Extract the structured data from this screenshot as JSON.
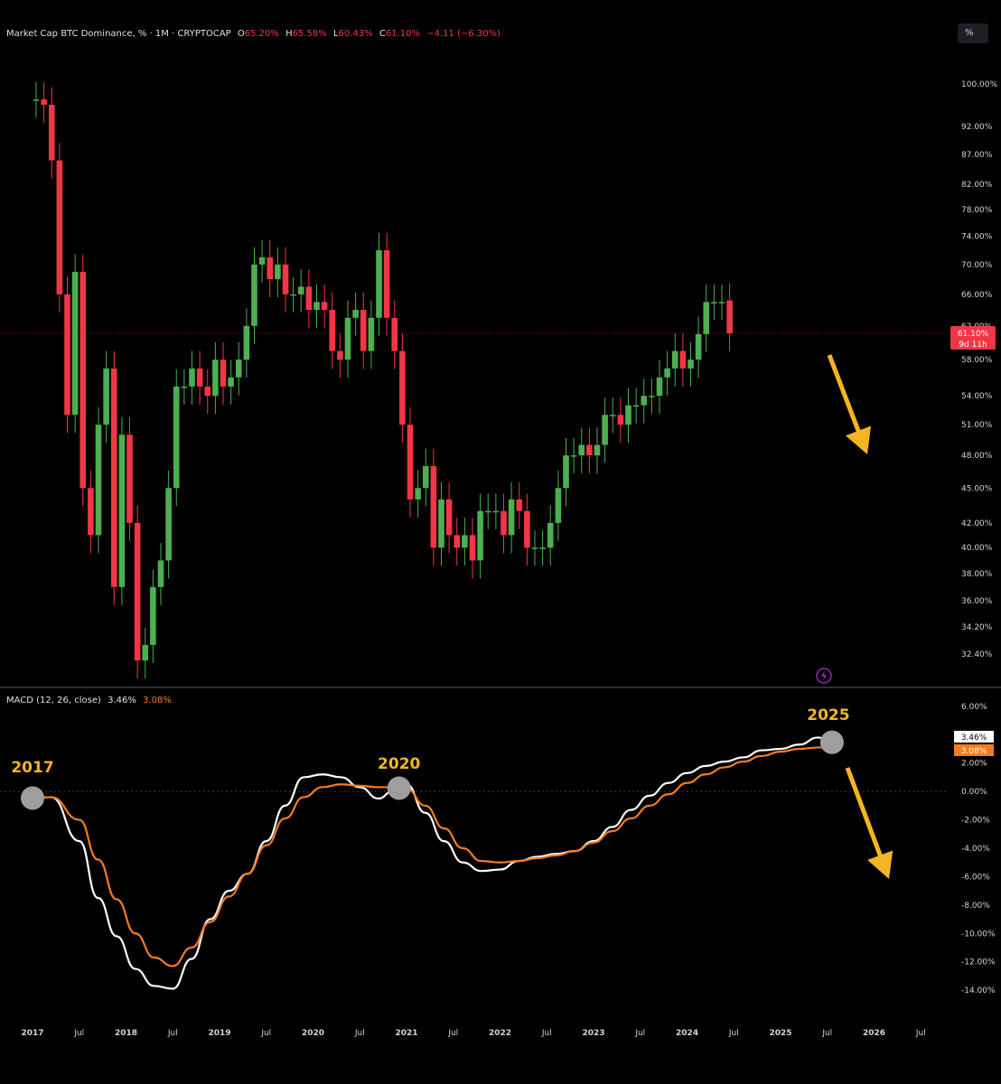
{
  "header": {
    "title": "Market Cap BTC Dominance, % · 1M · CRYPTOCAP",
    "ohlc": [
      {
        "label": "O",
        "value": "65.20%"
      },
      {
        "label": "H",
        "value": "65.58%"
      },
      {
        "label": "L",
        "value": "60.43%"
      },
      {
        "label": "C",
        "value": "61.10%"
      }
    ],
    "change": "−4.11 (−6.30%)",
    "scale_button": "%"
  },
  "colors": {
    "background": "#000000",
    "up": "#4caf50",
    "down": "#f23645",
    "macd_line": "#ffffff",
    "signal_line": "#f57c1f",
    "annotation": "#f4b522",
    "marker": "#9e9e9e",
    "axis_text": "#d1d4dc"
  },
  "price_label": {
    "value": "61.10%",
    "countdown": "9d 11h"
  },
  "macd_header": {
    "label": "MACD (12, 26, close)",
    "macd": "3.46%",
    "signal": "3.08%"
  },
  "macd_tags": {
    "macd": "3.46%",
    "signal": "3.08%"
  },
  "annotations": [
    {
      "text": "2017",
      "marker_date": 2017.0
    },
    {
      "text": "2020",
      "marker_date": 2020.92
    },
    {
      "text": "2025",
      "marker_date": 2025.55
    }
  ],
  "chart_data": [
    {
      "type": "candlestick",
      "title": "Market Cap BTC Dominance, % · 1M · CRYPTOCAP",
      "scale": "log",
      "ylim": [
        31.5,
        102
      ],
      "ytick_labels": [
        "100.00%",
        "92.00%",
        "87.00%",
        "82.00%",
        "78.00%",
        "74.00%",
        "70.00%",
        "66.00%",
        "62.00%",
        "58.00%",
        "54.00%",
        "51.00%",
        "48.00%",
        "45.00%",
        "42.00%",
        "40.00%",
        "38.00%",
        "36.00%",
        "34.20%",
        "32.40%"
      ],
      "xtick_labels": [
        "2017",
        "Jul",
        "2018",
        "Jul",
        "2019",
        "Jul",
        "2020",
        "Jul",
        "2021",
        "Jul",
        "2022",
        "Jul",
        "2023",
        "Jul",
        "2024",
        "Jul",
        "2025",
        "Jul",
        "2026",
        "Jul"
      ],
      "x_range": [
        "2017-01",
        "2026-12"
      ],
      "current_close": 61.1,
      "closes_note": "monthly closes, one per month starting 2017-01",
      "start": "2017-01",
      "closes": [
        97,
        96,
        86,
        66,
        52,
        69,
        45,
        41,
        51,
        57,
        37,
        50,
        42,
        32,
        33,
        37,
        39,
        45,
        55,
        55,
        57,
        55,
        54,
        58,
        55,
        56,
        58,
        62,
        70,
        71,
        68,
        70,
        66,
        66,
        67,
        64,
        65,
        64,
        59,
        58,
        63,
        64,
        59,
        63,
        72,
        63,
        59,
        51,
        44,
        45,
        47,
        40,
        44,
        41,
        40,
        41,
        39,
        43,
        43,
        43,
        41,
        44,
        43,
        40,
        40,
        40,
        42,
        45,
        48,
        48,
        49,
        48,
        49,
        52,
        52,
        51,
        53,
        53,
        54,
        54,
        56,
        57,
        59,
        57,
        58,
        61,
        65,
        65,
        65,
        61.1
      ],
      "opens": [
        97,
        97,
        96,
        86,
        66,
        52,
        69,
        45,
        41,
        51,
        57,
        37,
        50,
        42,
        32,
        33,
        37,
        39,
        45,
        55,
        55,
        57,
        55,
        54,
        58,
        55,
        56,
        58,
        62,
        70,
        71,
        68,
        70,
        66,
        66,
        67,
        64,
        65,
        64,
        59,
        58,
        63,
        64,
        59,
        63,
        72,
        63,
        59,
        51,
        44,
        45,
        47,
        40,
        44,
        41,
        40,
        41,
        39,
        43,
        43,
        43,
        41,
        44,
        43,
        40,
        40,
        40,
        42,
        45,
        48,
        48,
        49,
        48,
        49,
        52,
        52,
        51,
        53,
        53,
        54,
        54,
        56,
        57,
        59,
        57,
        58,
        61,
        65,
        65,
        65.2
      ]
    },
    {
      "type": "line",
      "title": "MACD (12, 26, close)",
      "ylim": [
        -14.5,
        6.5
      ],
      "ytick_labels": [
        "6.00%",
        "4.00%",
        "2.00%",
        "0.00%",
        "-2.00%",
        "-4.00%",
        "-6.00%",
        "-8.00%",
        "-10.00%",
        "-12.00%",
        "-14.00%"
      ],
      "series": [
        {
          "name": "MACD",
          "x": [
            2016.9,
            2017.2,
            2017.5,
            2017.7,
            2017.9,
            2018.1,
            2018.3,
            2018.5,
            2018.7,
            2018.9,
            2019.1,
            2019.3,
            2019.5,
            2019.7,
            2019.9,
            2020.1,
            2020.3,
            2020.5,
            2020.7,
            2020.85,
            2021.0,
            2021.2,
            2021.4,
            2021.6,
            2021.8,
            2022.0,
            2022.2,
            2022.4,
            2022.6,
            2022.8,
            2023.0,
            2023.2,
            2023.4,
            2023.6,
            2023.8,
            2024.0,
            2024.2,
            2024.4,
            2024.6,
            2024.8,
            2025.0,
            2025.2,
            2025.4,
            2025.55
          ],
          "values": [
            -0.5,
            -0.4,
            -3.5,
            -7.5,
            -10.2,
            -12.5,
            -13.7,
            -13.9,
            -11.8,
            -9.0,
            -7.0,
            -5.8,
            -3.5,
            -1.0,
            1.0,
            1.2,
            1.0,
            0.3,
            -0.5,
            0.0,
            0.5,
            -1.5,
            -3.5,
            -5.0,
            -5.6,
            -5.5,
            -4.9,
            -4.6,
            -4.4,
            -4.2,
            -3.5,
            -2.5,
            -1.3,
            -0.3,
            0.6,
            1.3,
            1.8,
            2.1,
            2.4,
            2.9,
            3.0,
            3.3,
            3.8,
            3.46
          ]
        },
        {
          "name": "Signal",
          "x": [
            2016.9,
            2017.2,
            2017.5,
            2017.7,
            2017.9,
            2018.1,
            2018.3,
            2018.5,
            2018.7,
            2018.9,
            2019.1,
            2019.3,
            2019.5,
            2019.7,
            2019.9,
            2020.1,
            2020.3,
            2020.5,
            2020.7,
            2020.85,
            2021.0,
            2021.2,
            2021.4,
            2021.6,
            2021.8,
            2022.0,
            2022.2,
            2022.4,
            2022.6,
            2022.8,
            2023.0,
            2023.2,
            2023.4,
            2023.6,
            2023.8,
            2024.0,
            2024.2,
            2024.4,
            2024.6,
            2024.8,
            2025.0,
            2025.2,
            2025.4,
            2025.55
          ],
          "values": [
            -0.5,
            -0.4,
            -2.0,
            -4.8,
            -7.6,
            -10.0,
            -11.7,
            -12.3,
            -11.0,
            -9.2,
            -7.4,
            -5.8,
            -3.8,
            -1.9,
            -0.4,
            0.3,
            0.5,
            0.4,
            0.3,
            0.3,
            0.2,
            -1.0,
            -2.6,
            -4.0,
            -4.9,
            -5.0,
            -4.9,
            -4.7,
            -4.5,
            -4.2,
            -3.6,
            -2.8,
            -1.9,
            -1.0,
            -0.2,
            0.6,
            1.2,
            1.7,
            2.1,
            2.5,
            2.8,
            3.0,
            3.1,
            3.08
          ]
        }
      ]
    }
  ]
}
